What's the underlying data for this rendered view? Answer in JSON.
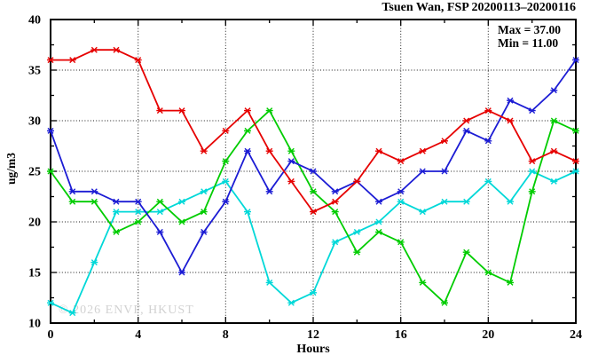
{
  "title": "Tsuen Wan, FSP 20200113–20200116",
  "annotation": {
    "max": "Max = 37.00",
    "min": "Min = 11.00"
  },
  "watermark": "© 2026 ENVF, HKUST",
  "axes": {
    "x_label": "Hours",
    "y_label": "ug/m3"
  },
  "chart_data": {
    "type": "line",
    "title": "Tsuen Wan, FSP 20200113–20200116",
    "xlabel": "Hours",
    "ylabel": "ug/m3",
    "xlim": [
      0,
      24
    ],
    "ylim": [
      10,
      40
    ],
    "x_major_ticks": [
      0,
      4,
      8,
      12,
      16,
      20,
      24
    ],
    "x_minor_ticks": [
      2,
      6,
      10,
      14,
      18,
      22
    ],
    "y_major_ticks": [
      10,
      15,
      20,
      25,
      30,
      35,
      40
    ],
    "y_minor_ticks": [
      12.5,
      17.5,
      22.5,
      27.5,
      32.5,
      37.5
    ],
    "x_gridlines": [
      4,
      8,
      12,
      16,
      20
    ],
    "y_gridlines": [
      15,
      20,
      25,
      30,
      35
    ],
    "grid": "dotted",
    "legend": "none",
    "marker": "asterisk",
    "x": [
      0,
      1,
      2,
      3,
      4,
      5,
      6,
      7,
      8,
      9,
      10,
      11,
      12,
      13,
      14,
      15,
      16,
      17,
      18,
      19,
      20,
      21,
      22,
      23,
      24
    ],
    "series": [
      {
        "name": "cyan-line",
        "color": "#00d8d8",
        "values": [
          12,
          11,
          16,
          21,
          21,
          21,
          22,
          23,
          24,
          21,
          14,
          12,
          13,
          18,
          19,
          20,
          22,
          21,
          22,
          22,
          24,
          22,
          25,
          24,
          25
        ]
      },
      {
        "name": "green-line",
        "color": "#00cc00",
        "values": [
          25,
          22,
          22,
          19,
          20,
          22,
          20,
          21,
          26,
          29,
          31,
          27,
          23,
          21,
          17,
          19,
          18,
          14,
          12,
          17,
          15,
          14,
          23,
          30,
          29
        ]
      },
      {
        "name": "blue-line",
        "color": "#1c1cd4",
        "values": [
          29,
          23,
          23,
          22,
          22,
          19,
          15,
          19,
          22,
          27,
          23,
          26,
          25,
          23,
          24,
          22,
          23,
          25,
          25,
          29,
          28,
          32,
          31,
          33,
          36
        ]
      },
      {
        "name": "red-line",
        "color": "#e60000",
        "values": [
          36,
          36,
          37,
          37,
          36,
          31,
          31,
          27,
          29,
          31,
          27,
          24,
          21,
          22,
          24,
          27,
          26,
          27,
          28,
          30,
          31,
          30,
          26,
          27,
          26
        ]
      }
    ],
    "annotations": [
      "Max = 37.00",
      "Min = 11.00"
    ]
  }
}
